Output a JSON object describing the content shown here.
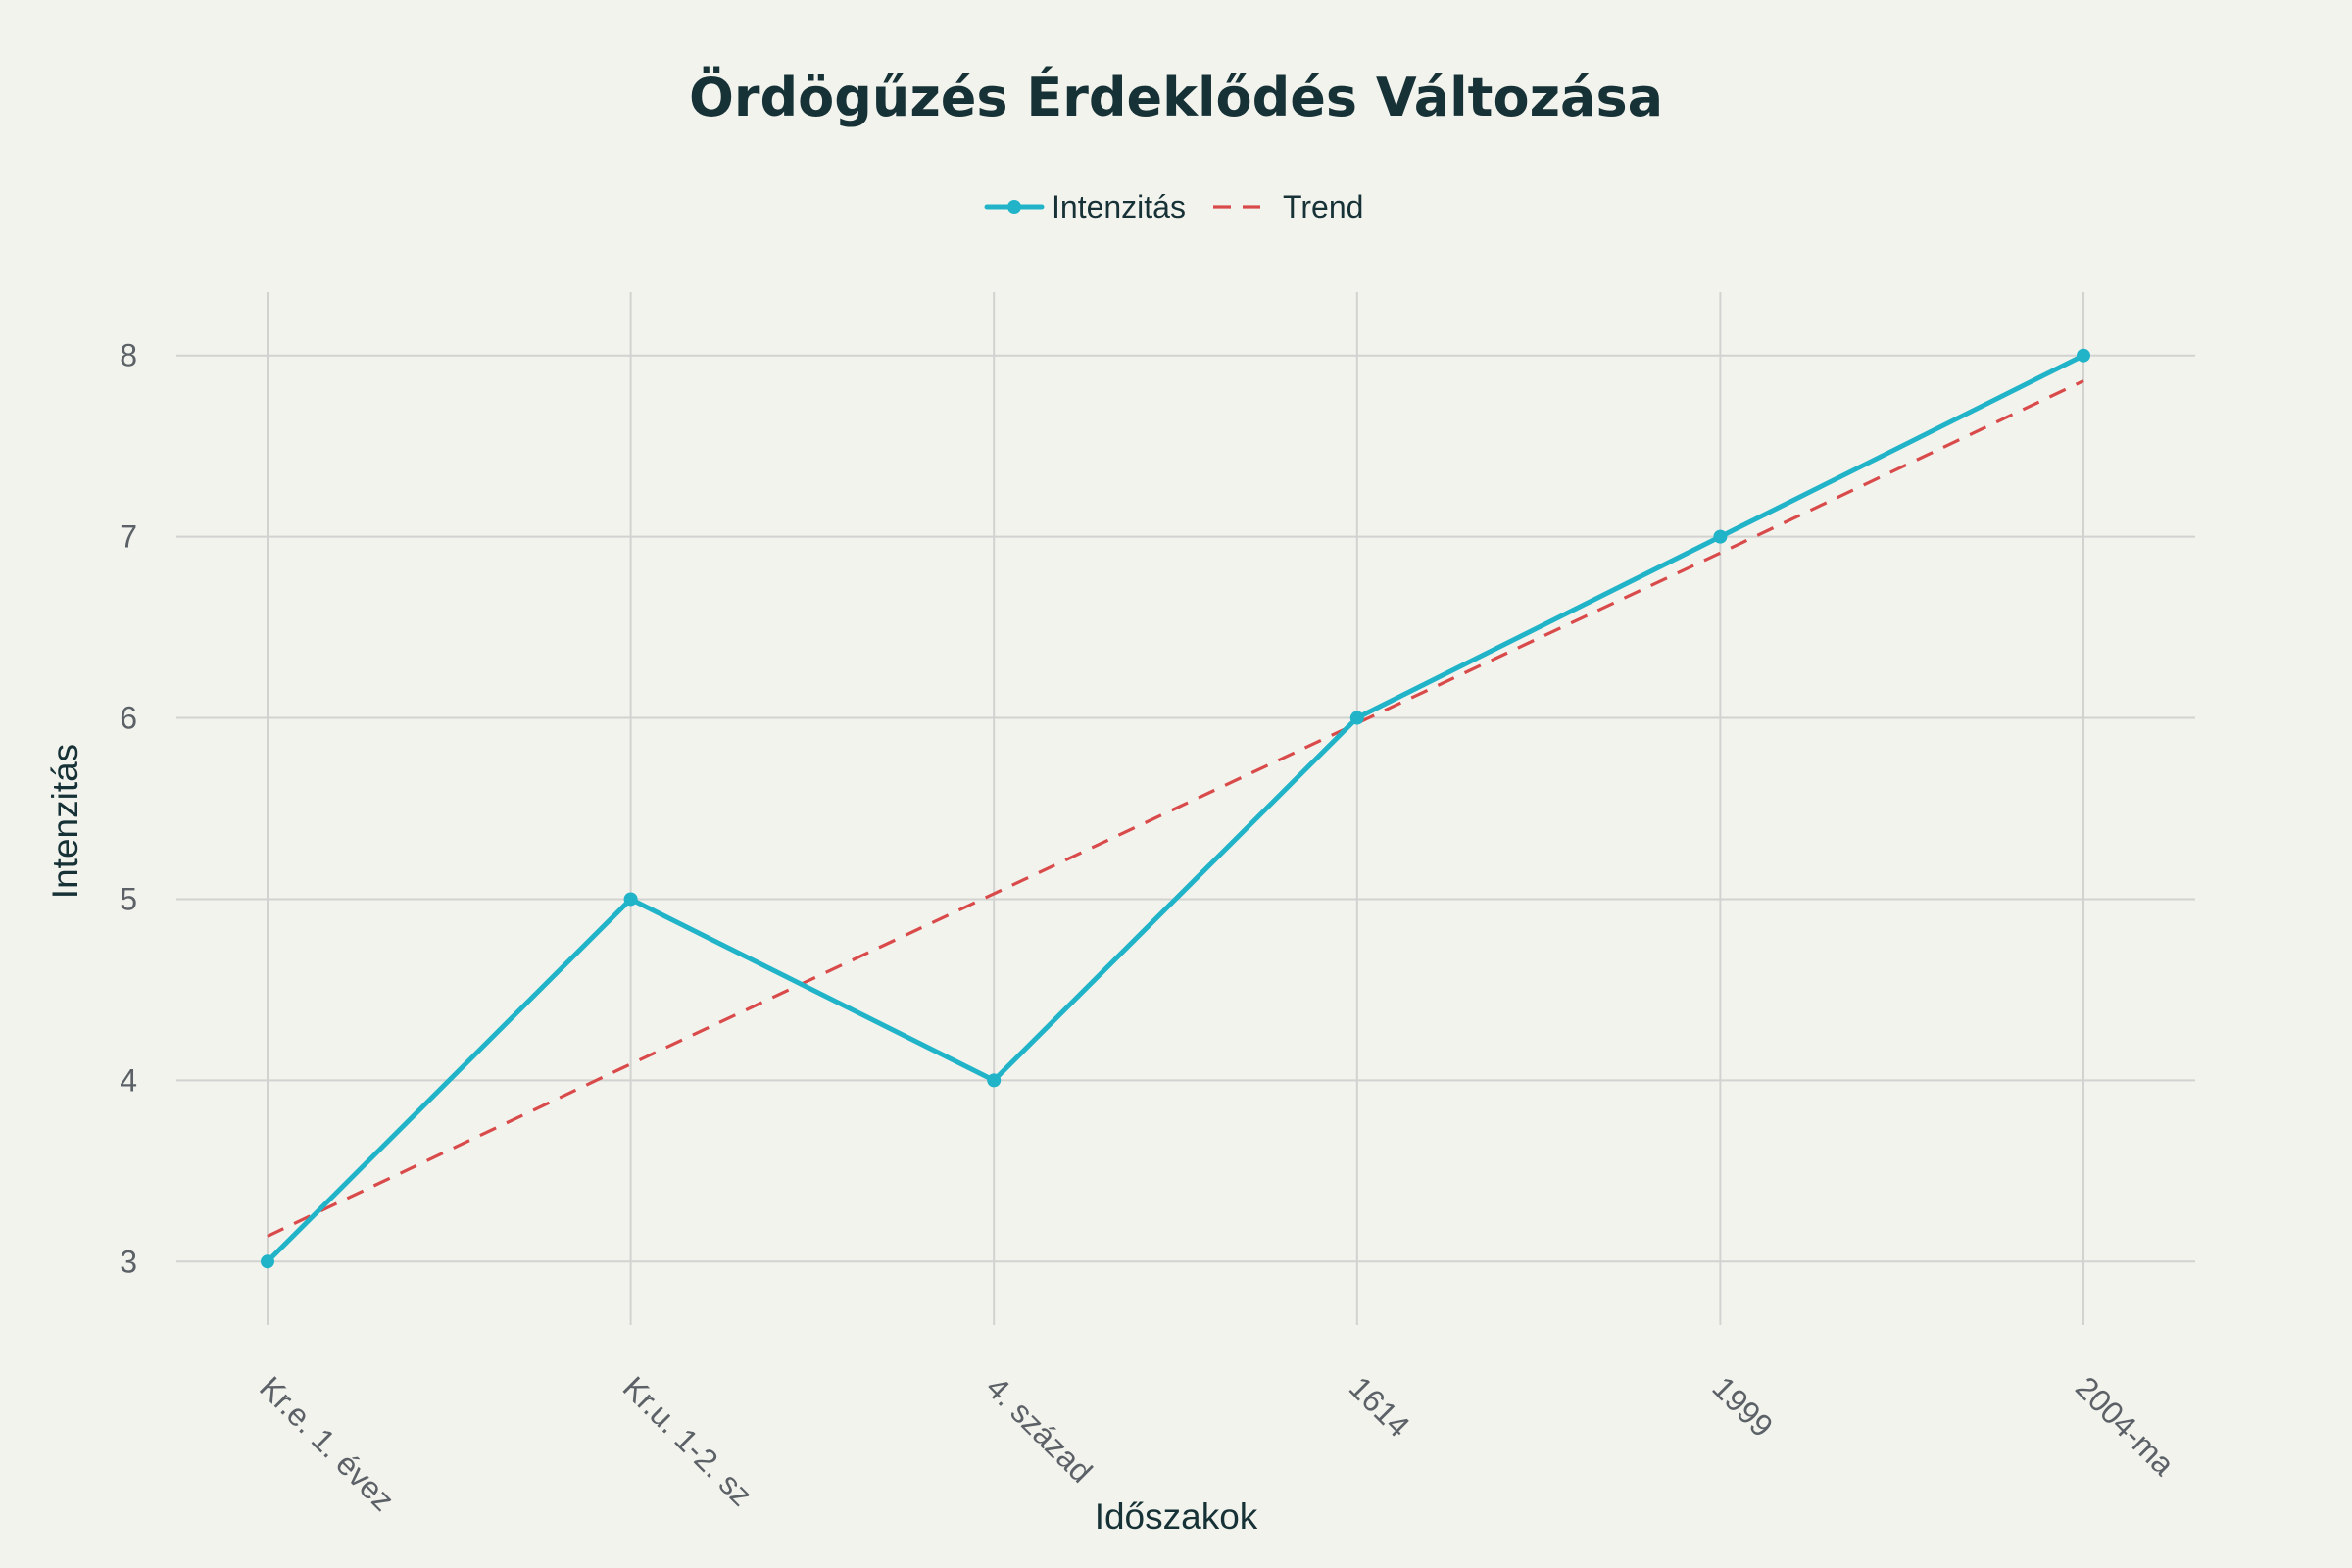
{
  "chart_data": {
    "type": "line",
    "title": "Ördögűzés Érdeklődés Változása",
    "xlabel": "Időszakok",
    "ylabel": "Intenzitás",
    "categories": [
      "Kr.e. 1. évez",
      "Kr.u. 1-2. sz",
      "4. század",
      "1614",
      "1999",
      "2004-ma"
    ],
    "ylim": [
      2.65,
      8.35
    ],
    "yticks": [
      3,
      4,
      5,
      6,
      7,
      8
    ],
    "grid": true,
    "legend_position": "top-center",
    "series": [
      {
        "name": "Intenzitás",
        "style": "solid-markers",
        "color": "#21b4c8",
        "values": [
          3,
          5,
          4,
          6,
          7,
          8
        ]
      },
      {
        "name": "Trend",
        "style": "dashed",
        "color": "#d94a4a",
        "values": [
          3.14,
          4.09,
          5.03,
          5.97,
          6.91,
          7.86
        ]
      }
    ]
  }
}
